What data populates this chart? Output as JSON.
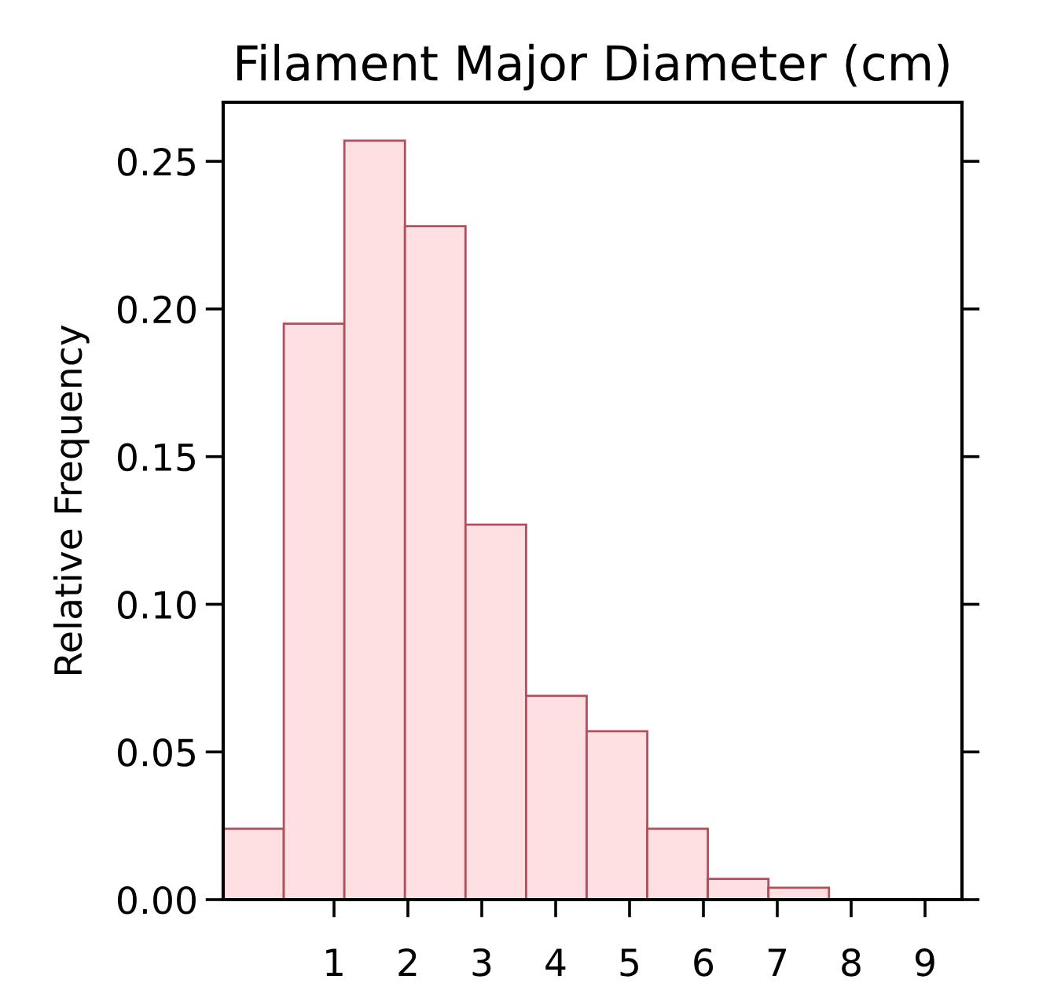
{
  "chart_data": {
    "type": "histogram",
    "title": "Filament Major Diameter (cm)",
    "ylabel": "Relative Frequency",
    "bins": [
      -0.5,
      0.32,
      1.14,
      1.96,
      2.78,
      3.6,
      4.42,
      5.24,
      6.06,
      6.88,
      7.7
    ],
    "values": [
      0.024,
      0.195,
      0.257,
      0.228,
      0.127,
      0.069,
      0.057,
      0.024,
      0.007,
      0.004
    ],
    "color": "#ffe0e2",
    "xlim": [
      -0.5,
      9.5
    ],
    "xticks": [
      1,
      2,
      3,
      4,
      5,
      6,
      7,
      8,
      9
    ],
    "ylim": [
      0,
      0.27
    ],
    "yticks": [
      {
        "value": 0,
        "label": "0.00"
      },
      {
        "value": 0.05,
        "label": "0.05"
      },
      {
        "value": 0.1,
        "label": "0.10"
      },
      {
        "value": 0.15,
        "label": "0.15"
      },
      {
        "value": 0.2,
        "label": "0.20"
      },
      {
        "value": 0.25,
        "label": "0.25"
      }
    ],
    "grid": false
  }
}
